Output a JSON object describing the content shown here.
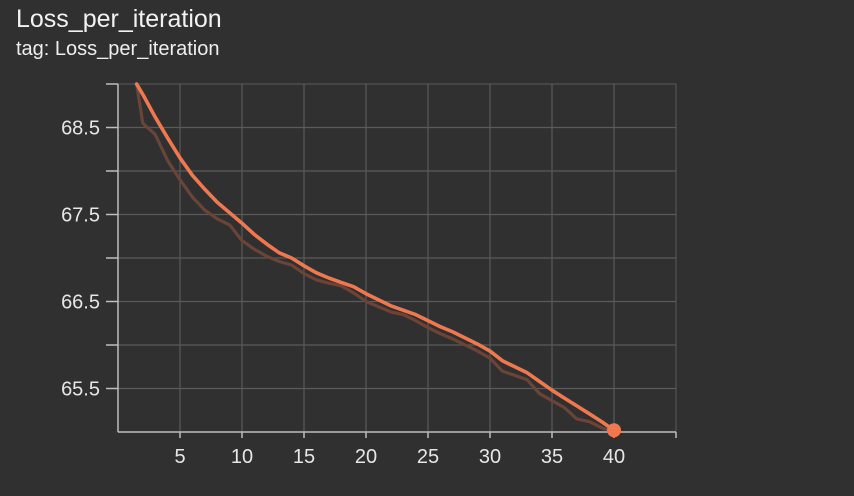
{
  "card": {
    "title": "Loss_per_iteration",
    "tag": "tag: Loss_per_iteration"
  },
  "colors": {
    "background": "#303030",
    "smoothed": "#f0784f",
    "raw": "#6a4438",
    "grid": "#5a5a5a",
    "axis": "#bdbdbd"
  },
  "chart_data": {
    "type": "line",
    "title": "Loss_per_iteration",
    "xlabel": "",
    "ylabel": "",
    "xlim": [
      0,
      45
    ],
    "ylim": [
      65.0,
      69.0
    ],
    "x_ticks": [
      5,
      10,
      15,
      20,
      25,
      30,
      35,
      40
    ],
    "y_ticks": [
      65.5,
      66.5,
      67.5,
      68.5
    ],
    "grid": true,
    "series": [
      {
        "kind": "smoothed",
        "x": [
          1.5,
          2,
          3,
          4,
          5,
          6,
          7,
          8,
          9,
          10,
          11,
          12,
          13,
          14,
          15,
          16,
          17,
          18,
          19,
          20,
          21,
          22,
          23,
          24,
          25,
          26,
          27,
          28,
          29,
          30,
          31,
          32,
          33,
          34,
          35,
          36,
          37,
          38,
          39,
          40
        ],
        "y": [
          69.0,
          68.88,
          68.62,
          68.38,
          68.15,
          67.95,
          67.79,
          67.64,
          67.52,
          67.4,
          67.27,
          67.16,
          67.06,
          67.0,
          66.91,
          66.83,
          66.77,
          66.72,
          66.67,
          66.59,
          66.52,
          66.45,
          66.4,
          66.35,
          66.28,
          66.21,
          66.15,
          66.08,
          66.01,
          65.93,
          65.82,
          65.75,
          65.68,
          65.58,
          65.48,
          65.39,
          65.3,
          65.21,
          65.12,
          65.02
        ]
      },
      {
        "kind": "raw",
        "x": [
          1.5,
          2,
          3,
          4,
          5,
          6,
          7,
          8,
          9,
          10,
          11,
          12,
          13,
          14,
          15,
          16,
          17,
          18,
          19,
          20,
          21,
          22,
          23,
          24,
          25,
          26,
          27,
          28,
          29,
          30,
          31,
          32,
          33,
          34,
          35,
          36,
          37,
          38,
          39,
          40
        ],
        "y": [
          69.0,
          68.55,
          68.42,
          68.12,
          67.9,
          67.7,
          67.55,
          67.45,
          67.38,
          67.2,
          67.1,
          67.02,
          66.96,
          66.92,
          66.82,
          66.75,
          66.71,
          66.68,
          66.6,
          66.5,
          66.44,
          66.38,
          66.35,
          66.28,
          66.2,
          66.13,
          66.07,
          66.0,
          65.93,
          65.85,
          65.7,
          65.65,
          65.6,
          65.44,
          65.36,
          65.28,
          65.15,
          65.12,
          65.05,
          65.0
        ]
      }
    ],
    "marker": {
      "x": 40,
      "y": 65.02
    }
  }
}
